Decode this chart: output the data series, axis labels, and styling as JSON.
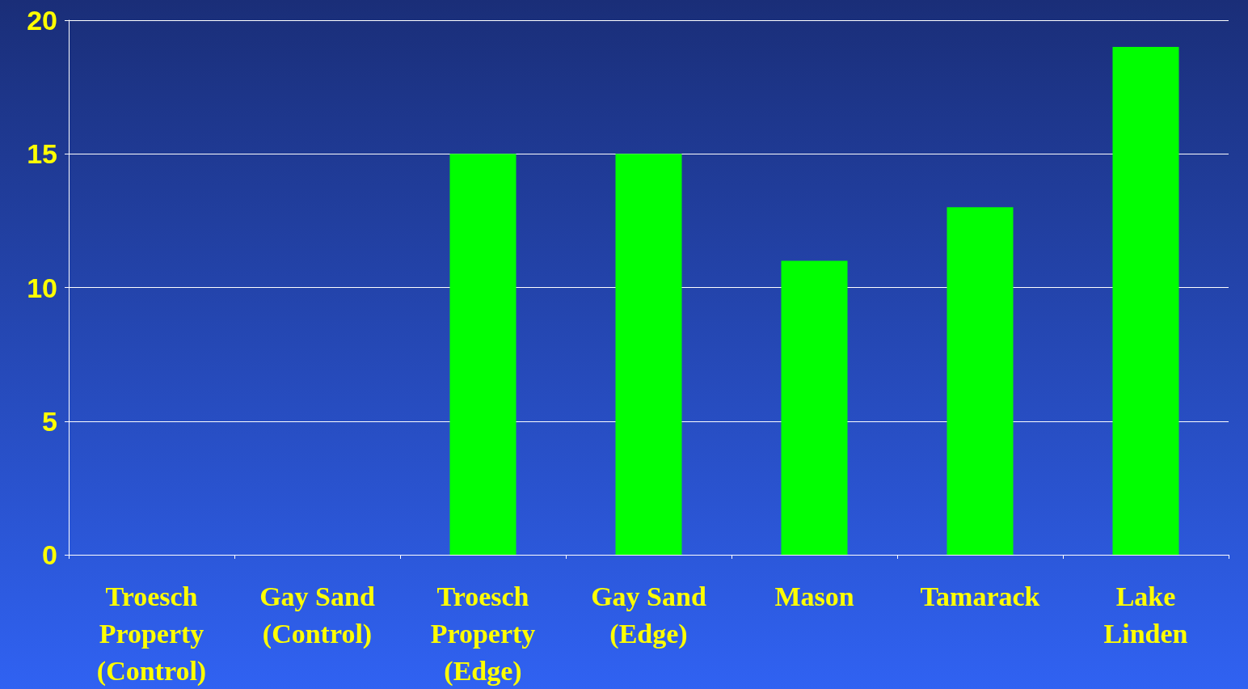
{
  "chart_data": {
    "type": "bar",
    "categories": [
      "Troesch\nProperty\n(Control)",
      "Gay Sand\n(Control)",
      "Troesch\nProperty\n(Edge)",
      "Gay Sand\n(Edge)",
      "Mason",
      "Tamarack",
      "Lake\nLinden"
    ],
    "values": [
      0,
      0,
      15,
      15,
      11,
      13,
      19
    ],
    "color": "#00ff00",
    "ylim": [
      0,
      20
    ],
    "yticks": [
      0,
      5,
      10,
      15,
      20
    ],
    "grid": "y"
  }
}
